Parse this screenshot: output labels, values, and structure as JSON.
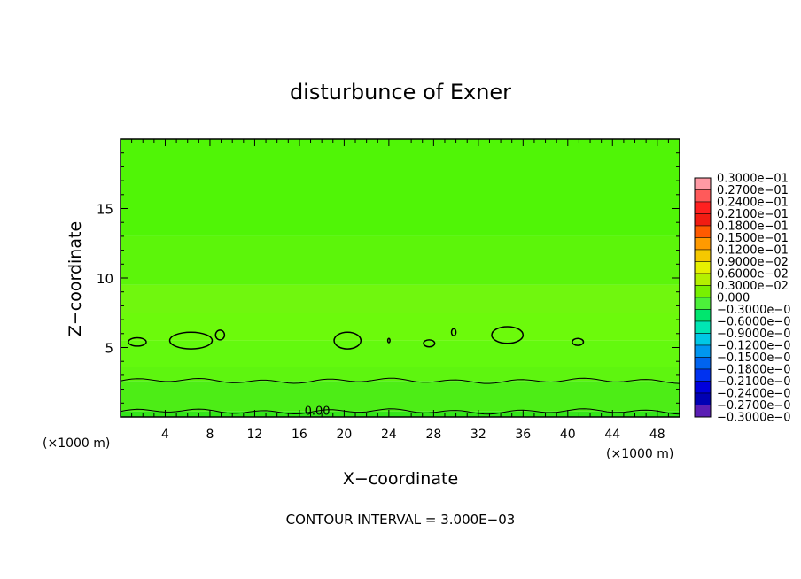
{
  "chart_data": {
    "type": "heatmap",
    "title": "disturbunce of Exner",
    "xlabel": "X−coordinate",
    "ylabel": "Z−coordinate",
    "x_unit_left": "(×1000 m)",
    "x_unit_right": "(×1000 m)",
    "footer": "CONTOUR INTERVAL = 3.000E−03",
    "xlim": [
      0,
      50
    ],
    "ylim": [
      0,
      20
    ],
    "x_ticks": [
      4,
      8,
      12,
      16,
      20,
      24,
      28,
      32,
      36,
      40,
      44,
      48
    ],
    "x_tick_labels": [
      "4",
      "8",
      "12",
      "16",
      "20",
      "24",
      "28",
      "32",
      "36",
      "40",
      "44",
      "48"
    ],
    "y_ticks": [
      5,
      10,
      15
    ],
    "y_tick_labels": [
      "5",
      "10",
      "15"
    ],
    "contour_label": "0.00",
    "field_bands": [
      {
        "z_from": 0,
        "z_to": 0.4,
        "color": "#33e61a"
      },
      {
        "z_from": 0.4,
        "z_to": 2.6,
        "color": "#4ded16"
      },
      {
        "z_from": 2.6,
        "z_to": 3.6,
        "color": "#5ef50f"
      },
      {
        "z_from": 3.6,
        "z_to": 5.5,
        "color": "#63f90e"
      },
      {
        "z_from": 5.5,
        "z_to": 7.5,
        "color": "#6cfa0b"
      },
      {
        "z_from": 7.5,
        "z_to": 9.5,
        "color": "#70f70e"
      },
      {
        "z_from": 9.5,
        "z_to": 13.0,
        "color": "#5cf50a"
      },
      {
        "z_from": 13.0,
        "z_to": 20.0,
        "color": "#50f506"
      }
    ],
    "contour_lines_z": [
      {
        "z": 0.4,
        "amp": 0.12
      },
      {
        "z": 2.6,
        "amp": 0.12
      }
    ],
    "closed_contours": [
      {
        "x": 1.5,
        "z": 5.4,
        "rx": 0.8,
        "rz": 0.3
      },
      {
        "x": 6.3,
        "z": 5.5,
        "rx": 1.9,
        "rz": 0.6
      },
      {
        "x": 8.9,
        "z": 5.9,
        "rx": 0.4,
        "rz": 0.35
      },
      {
        "x": 20.3,
        "z": 5.5,
        "rx": 1.2,
        "rz": 0.6
      },
      {
        "x": 24.0,
        "z": 5.5,
        "rx": 0.1,
        "rz": 0.15
      },
      {
        "x": 27.6,
        "z": 5.3,
        "rx": 0.5,
        "rz": 0.25
      },
      {
        "x": 29.8,
        "z": 6.1,
        "rx": 0.2,
        "rz": 0.25
      },
      {
        "x": 34.6,
        "z": 5.9,
        "rx": 1.4,
        "rz": 0.6
      },
      {
        "x": 40.9,
        "z": 5.4,
        "rx": 0.5,
        "rz": 0.25
      }
    ],
    "colorbar": {
      "labels": [
        "0.3000e−01",
        "0.2700e−01",
        "0.2400e−01",
        "0.2100e−01",
        "0.1800e−01",
        "0.1500e−01",
        "0.1200e−01",
        "0.9000e−02",
        "0.6000e−02",
        "0.3000e−02",
        "0.000",
        "−0.3000e−0",
        "−0.6000e−0",
        "−0.9000e−0",
        "−0.1200e−0",
        "−0.1500e−0",
        "−0.1800e−0",
        "−0.2100e−0",
        "−0.2400e−0",
        "−0.2700e−0",
        "−0.3000e−0"
      ],
      "colors": [
        "#ff9aa4",
        "#ff5a5a",
        "#ff2020",
        "#f21c12",
        "#ff5a00",
        "#ff9a00",
        "#f5c800",
        "#e6f000",
        "#b4f000",
        "#78f000",
        "#4cf03a",
        "#00e66e",
        "#00e6b4",
        "#00c8e6",
        "#0096f0",
        "#0064f0",
        "#0032f0",
        "#0000dc",
        "#0000b4",
        "#5a1eb4"
      ]
    }
  }
}
